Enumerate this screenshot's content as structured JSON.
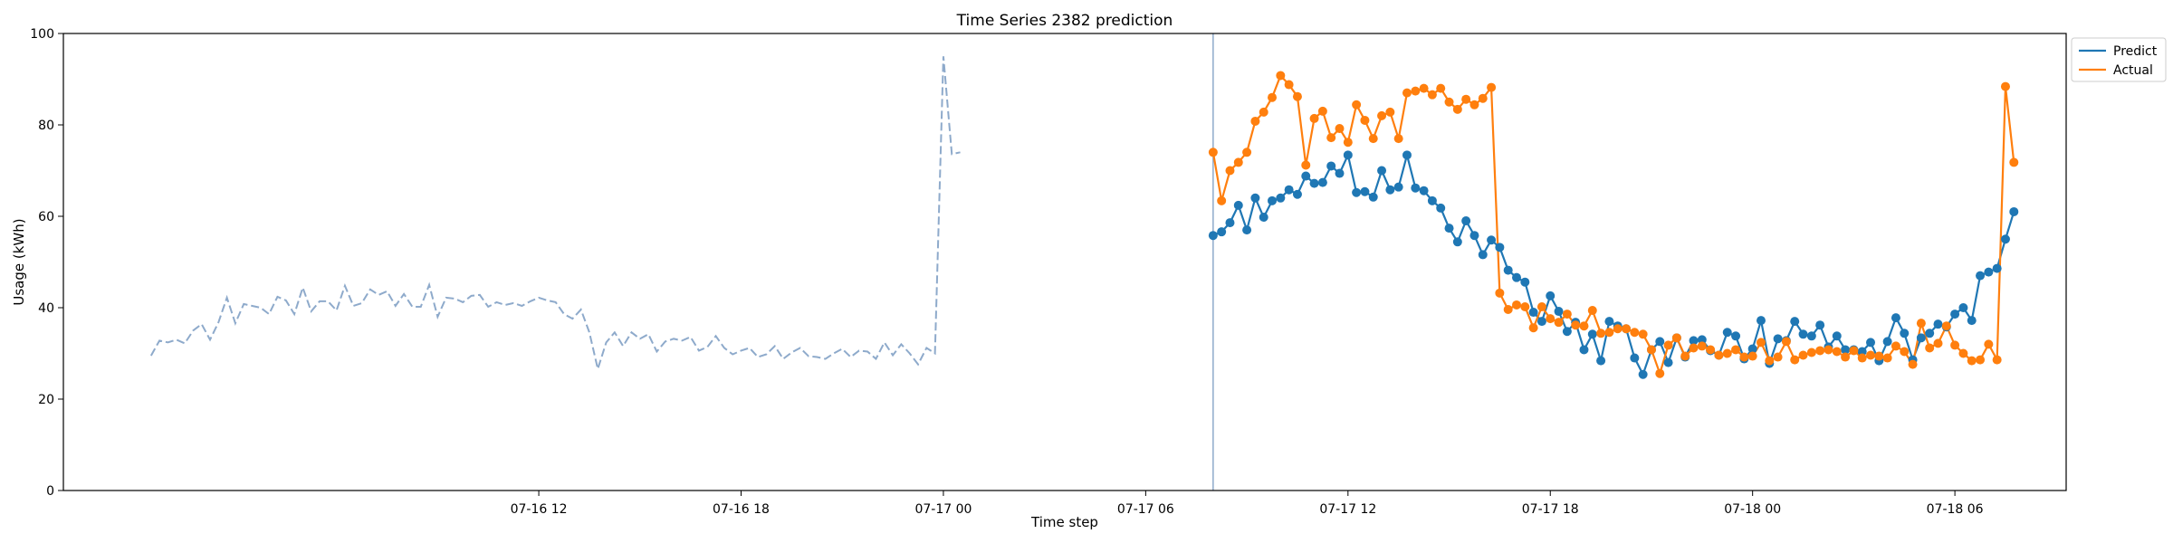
{
  "chart_data": {
    "type": "line",
    "title": "Time Series 2382 prediction",
    "xlabel": "Time step",
    "ylabel": "Usage (kWh)",
    "ylim": [
      0,
      100
    ],
    "yticks": [
      0,
      20,
      40,
      60,
      80,
      100
    ],
    "xlim_hours": [
      -26.1,
      33.3
    ],
    "xticks": [
      {
        "label": "07-16 12",
        "hour": -12
      },
      {
        "label": "07-16 18",
        "hour": -6
      },
      {
        "label": "07-17 00",
        "hour": 0
      },
      {
        "label": "07-17 06",
        "hour": 6
      },
      {
        "label": "07-17 12",
        "hour": 12
      },
      {
        "label": "07-17 18",
        "hour": 18
      },
      {
        "label": "07-18 00",
        "hour": 24
      },
      {
        "label": "07-18 06",
        "hour": 30
      }
    ],
    "step_hours": 0.25,
    "history_start_hour": -23.5,
    "forecast_start_hour": 8.0,
    "legend": {
      "position": "top-right",
      "entries": [
        "Predict",
        "Actual"
      ]
    },
    "colors": {
      "predict": "#1f77b4",
      "actual": "#ff7f0e",
      "history": "#8eaacb",
      "divider": "#8eaacb"
    },
    "history": [
      29.5,
      32.8,
      32.4,
      33.0,
      32.2,
      35.0,
      36.4,
      33.0,
      36.8,
      42.2,
      36.6,
      40.8,
      40.4,
      40.0,
      38.6,
      42.4,
      41.6,
      38.6,
      44.4,
      39.2,
      41.4,
      41.4,
      39.4,
      44.8,
      40.4,
      41.0,
      44.0,
      42.8,
      43.6,
      40.4,
      43.0,
      40.2,
      40.2,
      45.0,
      38.0,
      42.2,
      42.0,
      41.2,
      42.6,
      42.8,
      40.2,
      41.2,
      40.6,
      41.0,
      40.4,
      41.4,
      42.2,
      41.6,
      41.2,
      38.6,
      37.6,
      39.6,
      34.6,
      26.6,
      32.4,
      34.6,
      31.6,
      34.6,
      33.2,
      34.2,
      30.4,
      32.6,
      33.2,
      32.8,
      33.6,
      30.6,
      31.4,
      33.8,
      31.2,
      29.8,
      30.6,
      31.2,
      29.2,
      29.8,
      31.6,
      28.8,
      30.2,
      31.2,
      29.4,
      29.2,
      28.8,
      30.0,
      31.0,
      29.2,
      30.6,
      30.4,
      28.8,
      32.4,
      29.6,
      32.0,
      30.0,
      27.6,
      31.2,
      30.0,
      95.0,
      73.6,
      74.0
    ],
    "predict": [
      55.8,
      56.6,
      58.6,
      62.4,
      57.0,
      64.0,
      59.8,
      63.4,
      64.0,
      65.8,
      64.8,
      68.8,
      67.2,
      67.4,
      71.0,
      69.4,
      73.4,
      65.2,
      65.4,
      64.2,
      70.0,
      65.8,
      66.4,
      73.4,
      66.2,
      65.6,
      63.4,
      61.8,
      57.4,
      54.4,
      59.0,
      55.8,
      51.6,
      54.8,
      53.2,
      48.2,
      46.6,
      45.6,
      39.0,
      37.0,
      42.6,
      39.2,
      34.8,
      36.8,
      30.8,
      34.2,
      28.4,
      37.0,
      36.0,
      35.4,
      29.0,
      25.4,
      30.8,
      32.6,
      28.0,
      33.4,
      29.2,
      32.8,
      33.0,
      30.6,
      29.6,
      34.6,
      33.8,
      28.8,
      31.0,
      37.2,
      27.8,
      33.2,
      32.8,
      37.0,
      34.2,
      33.8,
      36.2,
      31.4,
      33.8,
      30.8,
      30.8,
      30.4,
      32.4,
      28.4,
      32.6,
      37.8,
      34.4,
      28.6,
      33.4,
      34.4,
      36.4,
      35.8,
      38.6,
      40.0,
      37.2,
      47.0,
      47.8,
      48.6,
      55.0,
      61.0
    ],
    "actual": [
      74.0,
      63.4,
      70.0,
      71.8,
      74.0,
      80.8,
      82.8,
      86.0,
      90.8,
      88.8,
      86.2,
      71.2,
      81.4,
      83.0,
      77.2,
      79.2,
      76.2,
      84.4,
      81.0,
      77.0,
      82.0,
      82.8,
      77.0,
      87.0,
      87.4,
      88.0,
      86.6,
      88.0,
      85.0,
      83.4,
      85.6,
      84.4,
      85.8,
      88.2,
      43.2,
      39.6,
      40.6,
      40.2,
      35.6,
      40.2,
      37.6,
      36.8,
      38.6,
      36.2,
      36.0,
      39.4,
      34.4,
      34.6,
      35.4,
      35.4,
      34.6,
      34.2,
      30.8,
      25.6,
      31.8,
      33.4,
      29.4,
      31.2,
      31.6,
      30.8,
      29.6,
      30.0,
      30.8,
      29.2,
      29.4,
      32.4,
      28.4,
      29.2,
      32.6,
      28.6,
      29.6,
      30.2,
      30.6,
      30.8,
      30.4,
      29.2,
      30.6,
      29.0,
      29.6,
      29.4,
      29.0,
      31.6,
      30.4,
      27.6,
      36.6,
      31.2,
      32.2,
      36.0,
      31.8,
      30.0,
      28.4,
      28.6,
      32.0,
      28.6,
      88.4,
      71.8
    ]
  }
}
